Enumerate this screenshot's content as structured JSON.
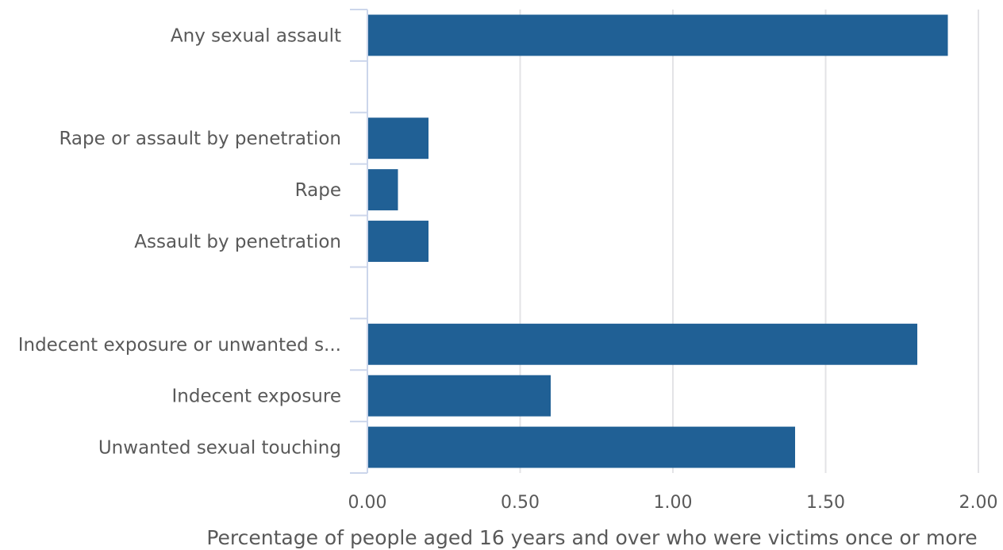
{
  "chart_data": {
    "type": "bar",
    "orientation": "horizontal",
    "categories": [
      "Any sexual assault",
      "",
      "Rape or assault by penetration",
      "Rape",
      "Assault by penetration",
      "",
      "Indecent exposure or unwanted s...",
      "Indecent exposure",
      "Unwanted sexual touching"
    ],
    "values": [
      1.9,
      null,
      0.2,
      0.1,
      0.2,
      null,
      1.8,
      0.6,
      1.4
    ],
    "xlabel": "Percentage of people aged 16 years and over who were victims once or more",
    "ylabel": "",
    "xlim": [
      0,
      2
    ],
    "xticks": [
      "0.00",
      "0.50",
      "1.00",
      "1.50",
      "2.00"
    ],
    "grid": true,
    "colors": {
      "bar": "#206095"
    }
  }
}
